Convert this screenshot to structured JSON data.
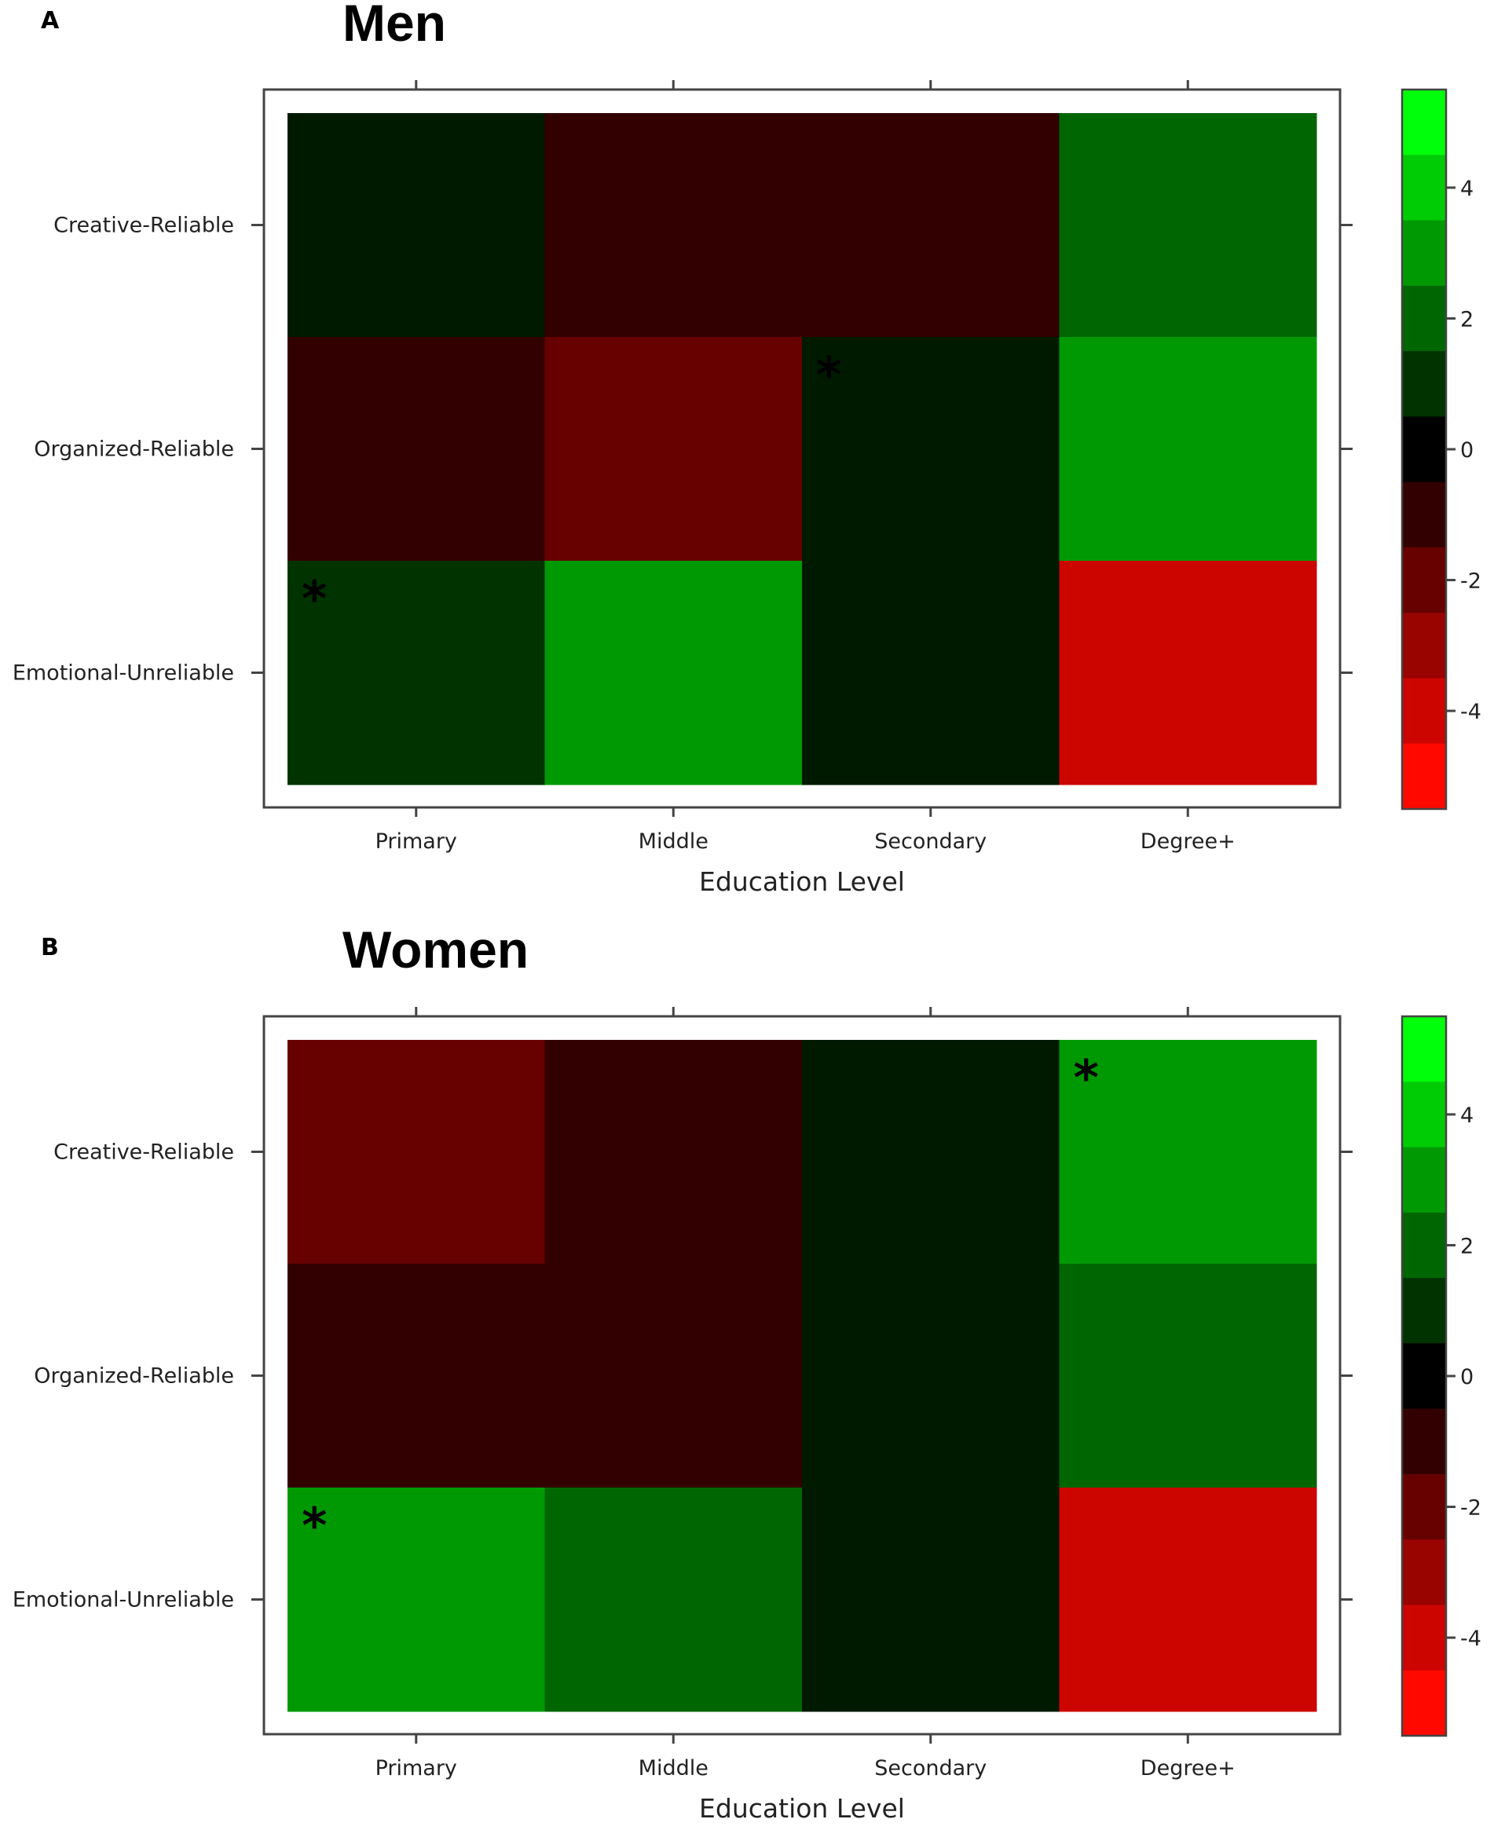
{
  "chart_data": [
    {
      "type": "heatmap",
      "panel": "A",
      "title": "Men",
      "xlabel": "Education Level",
      "ylabel": "",
      "x_categories": [
        "Primary",
        "Middle",
        "Secondary",
        "Degree+"
      ],
      "y_categories": [
        "Creative-Reliable",
        "Organized-Reliable",
        "Emotional-Unreliable"
      ],
      "values": [
        [
          0.5,
          -1.0,
          -1.0,
          2.0
        ],
        [
          -1.0,
          -2.0,
          0.5,
          3.0
        ],
        [
          1.0,
          3.0,
          0.5,
          -4.0
        ]
      ],
      "significant": [
        [
          2,
          0,
          3
        ],
        [
          1,
          2,
          3
        ]
      ],
      "significance_marker": "*",
      "colorbar": {
        "range": [
          -5.5,
          5.5
        ],
        "ticks": [
          -4,
          -2,
          0,
          2,
          4
        ]
      }
    },
    {
      "type": "heatmap",
      "panel": "B",
      "title": "Women",
      "xlabel": "Education Level",
      "ylabel": "",
      "x_categories": [
        "Primary",
        "Middle",
        "Secondary",
        "Degree+"
      ],
      "y_categories": [
        "Creative-Reliable",
        "Organized-Reliable",
        "Emotional-Unreliable"
      ],
      "values": [
        [
          -2.0,
          -1.0,
          0.5,
          3.0
        ],
        [
          -1.0,
          -1.0,
          0.5,
          2.0
        ],
        [
          3.0,
          2.0,
          0.5,
          -4.0
        ]
      ],
      "significant": [
        [
          2,
          0,
          3
        ],
        [
          0,
          3
        ]
      ],
      "significance_marker": "*",
      "colorbar": {
        "range": [
          -5.5,
          5.5
        ],
        "ticks": [
          -4,
          -2,
          0,
          2,
          4
        ]
      }
    }
  ]
}
